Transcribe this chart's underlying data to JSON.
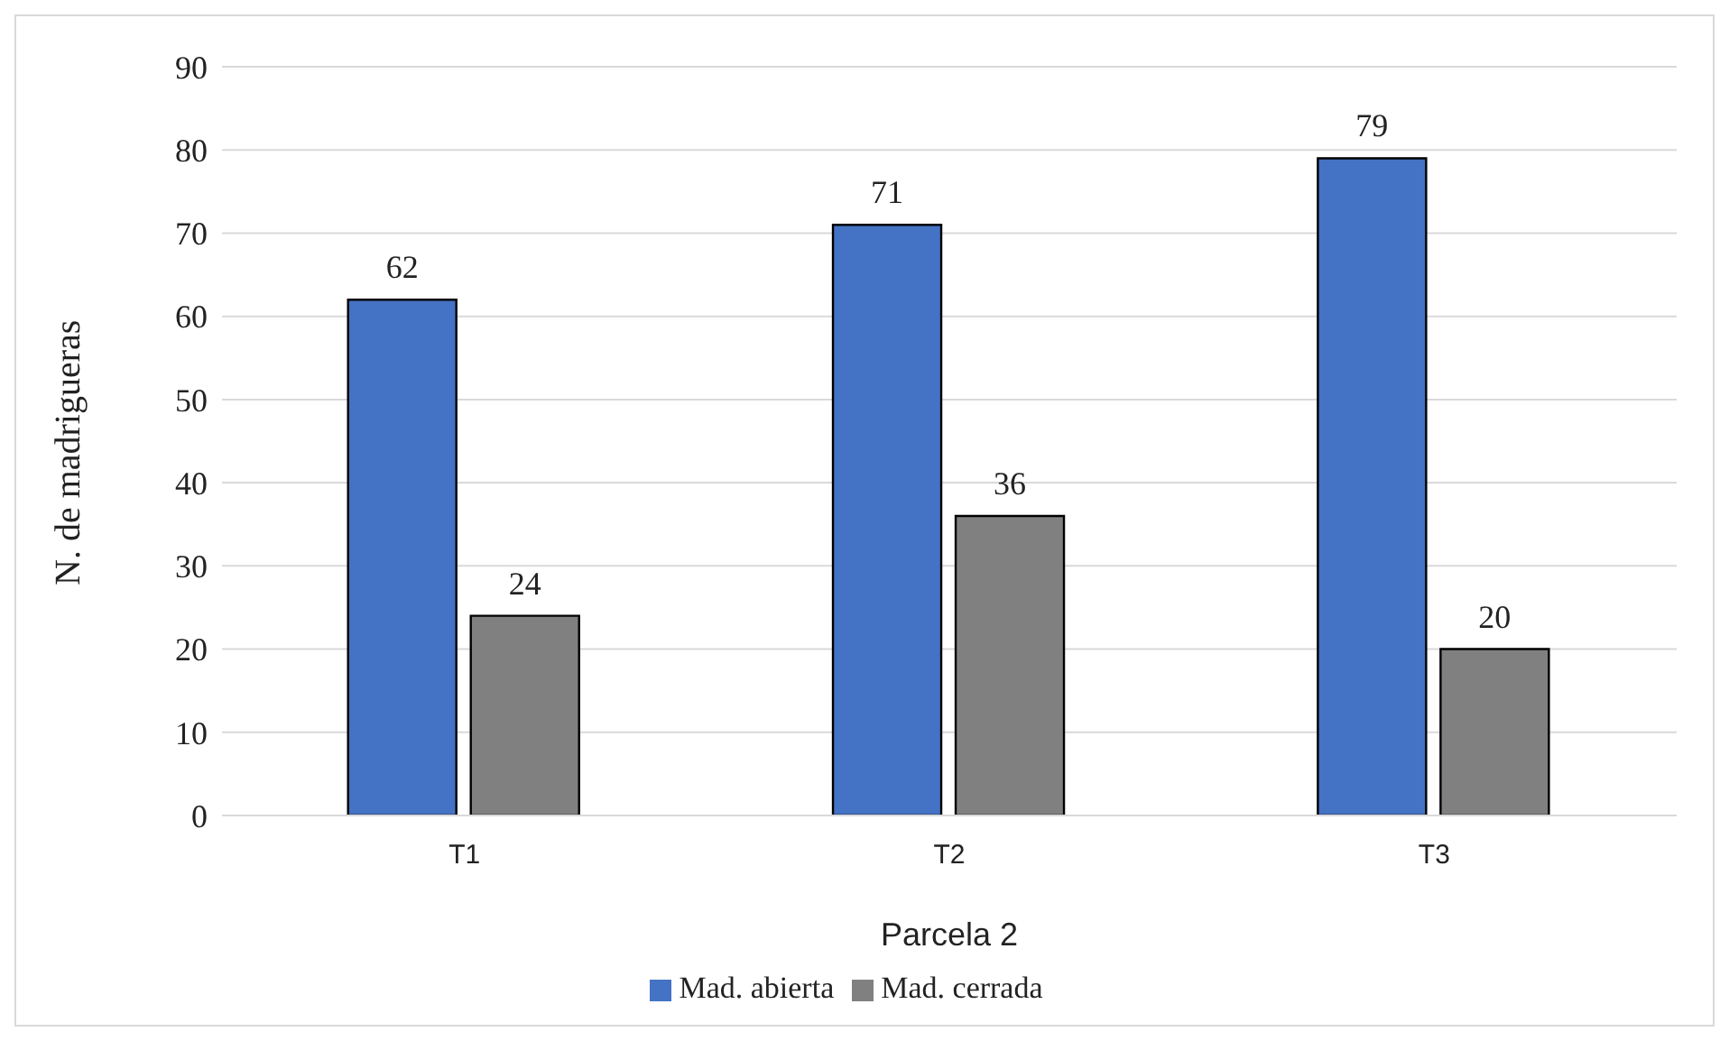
{
  "chart_data": {
    "type": "bar",
    "xlabel": "Parcela 2",
    "ylabel": "N. de madrigueras",
    "categories": [
      "T1",
      "T2",
      "T3"
    ],
    "series": [
      {
        "name": "Mad. abierta",
        "color": "#4472c4",
        "values": [
          62,
          71,
          79
        ]
      },
      {
        "name": "Mad. cerrada",
        "color": "#808080",
        "values": [
          24,
          36,
          20
        ]
      }
    ],
    "ylim": [
      0,
      90
    ],
    "yticks": [
      0,
      10,
      20,
      30,
      40,
      50,
      60,
      70,
      80,
      90
    ],
    "grid": "y",
    "legend": "bottom",
    "data_labels": true
  }
}
